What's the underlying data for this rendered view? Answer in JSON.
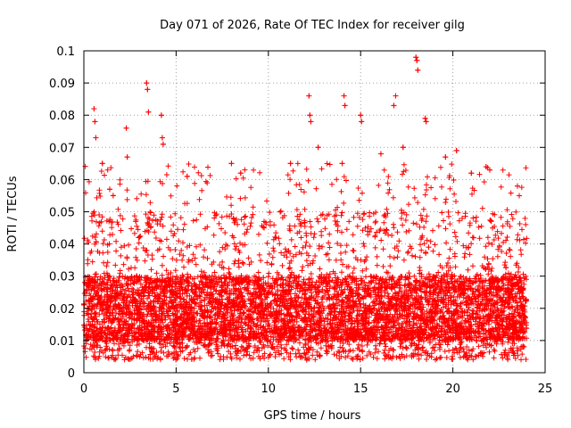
{
  "chart_data": {
    "type": "scatter",
    "title": "Day 071 of 2026, Rate Of TEC Index for receiver gilg",
    "xlabel": "GPS time / hours",
    "ylabel": "ROTI / TECUs",
    "xlim": [
      0,
      25
    ],
    "ylim": [
      0,
      0.1
    ],
    "xticks": [
      0,
      5,
      10,
      15,
      20,
      25
    ],
    "xtick_labels": [
      "0",
      "5",
      "10",
      "15",
      "20",
      "25"
    ],
    "yticks": [
      0,
      0.01,
      0.02,
      0.03,
      0.04,
      0.05,
      0.06,
      0.07,
      0.08,
      0.09,
      0.1
    ],
    "ytick_labels": [
      "0",
      "0.01",
      "0.02",
      "0.03",
      "0.04",
      "0.05",
      "0.06",
      "0.07",
      "0.08",
      "0.09",
      "0.1"
    ],
    "grid": true,
    "marker": "plus",
    "color": "#ff0000",
    "series": [
      {
        "name": "ROTI",
        "x_range_hours": [
          0,
          24
        ],
        "points": [
          [
            0.55,
            0.082
          ],
          [
            0.6,
            0.078
          ],
          [
            0.65,
            0.073
          ],
          [
            1.0,
            0.065
          ],
          [
            1.4,
            0.057
          ],
          [
            2.3,
            0.076
          ],
          [
            2.35,
            0.067
          ],
          [
            3.4,
            0.09
          ],
          [
            3.45,
            0.088
          ],
          [
            3.5,
            0.081
          ],
          [
            4.2,
            0.08
          ],
          [
            4.25,
            0.073
          ],
          [
            4.3,
            0.071
          ],
          [
            5.6,
            0.061
          ],
          [
            8.0,
            0.065
          ],
          [
            8.5,
            0.062
          ],
          [
            11.2,
            0.065
          ],
          [
            12.2,
            0.086
          ],
          [
            12.25,
            0.08
          ],
          [
            12.3,
            0.078
          ],
          [
            12.7,
            0.07
          ],
          [
            14.0,
            0.065
          ],
          [
            14.1,
            0.086
          ],
          [
            14.15,
            0.083
          ],
          [
            15.0,
            0.08
          ],
          [
            15.05,
            0.078
          ],
          [
            16.1,
            0.068
          ],
          [
            16.8,
            0.083
          ],
          [
            16.9,
            0.086
          ],
          [
            17.3,
            0.07
          ],
          [
            18.0,
            0.098
          ],
          [
            18.05,
            0.097
          ],
          [
            18.1,
            0.094
          ],
          [
            18.5,
            0.079
          ],
          [
            18.55,
            0.078
          ],
          [
            19.6,
            0.067
          ],
          [
            20.2,
            0.069
          ],
          [
            21.0,
            0.062
          ],
          [
            21.8,
            0.064
          ],
          [
            22.0,
            0.063
          ],
          [
            23.5,
            0.058
          ],
          [
            23.6,
            0.055
          ]
        ],
        "baseline_min": 0.004,
        "baseline_typical": [
          0.01,
          0.03
        ],
        "note": "dense cloud of points spanning 0–24 h"
      }
    ]
  }
}
